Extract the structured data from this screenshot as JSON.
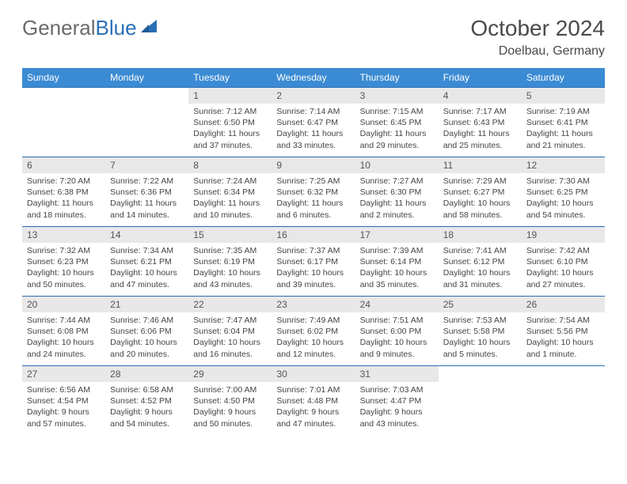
{
  "brand": {
    "part1": "General",
    "part2": "Blue"
  },
  "title": "October 2024",
  "location": "Doelbau, Germany",
  "colors": {
    "header_bg": "#3b8bd4",
    "rule": "#2a6fb5",
    "daynum_bg": "#e8e8e8",
    "text": "#444444",
    "title_text": "#4a4a4a"
  },
  "weekdays": [
    "Sunday",
    "Monday",
    "Tuesday",
    "Wednesday",
    "Thursday",
    "Friday",
    "Saturday"
  ],
  "weeks": [
    [
      null,
      null,
      {
        "n": "1",
        "sr": "7:12 AM",
        "ss": "6:50 PM",
        "dl": "11 hours and 37 minutes."
      },
      {
        "n": "2",
        "sr": "7:14 AM",
        "ss": "6:47 PM",
        "dl": "11 hours and 33 minutes."
      },
      {
        "n": "3",
        "sr": "7:15 AM",
        "ss": "6:45 PM",
        "dl": "11 hours and 29 minutes."
      },
      {
        "n": "4",
        "sr": "7:17 AM",
        "ss": "6:43 PM",
        "dl": "11 hours and 25 minutes."
      },
      {
        "n": "5",
        "sr": "7:19 AM",
        "ss": "6:41 PM",
        "dl": "11 hours and 21 minutes."
      }
    ],
    [
      {
        "n": "6",
        "sr": "7:20 AM",
        "ss": "6:38 PM",
        "dl": "11 hours and 18 minutes."
      },
      {
        "n": "7",
        "sr": "7:22 AM",
        "ss": "6:36 PM",
        "dl": "11 hours and 14 minutes."
      },
      {
        "n": "8",
        "sr": "7:24 AM",
        "ss": "6:34 PM",
        "dl": "11 hours and 10 minutes."
      },
      {
        "n": "9",
        "sr": "7:25 AM",
        "ss": "6:32 PM",
        "dl": "11 hours and 6 minutes."
      },
      {
        "n": "10",
        "sr": "7:27 AM",
        "ss": "6:30 PM",
        "dl": "11 hours and 2 minutes."
      },
      {
        "n": "11",
        "sr": "7:29 AM",
        "ss": "6:27 PM",
        "dl": "10 hours and 58 minutes."
      },
      {
        "n": "12",
        "sr": "7:30 AM",
        "ss": "6:25 PM",
        "dl": "10 hours and 54 minutes."
      }
    ],
    [
      {
        "n": "13",
        "sr": "7:32 AM",
        "ss": "6:23 PM",
        "dl": "10 hours and 50 minutes."
      },
      {
        "n": "14",
        "sr": "7:34 AM",
        "ss": "6:21 PM",
        "dl": "10 hours and 47 minutes."
      },
      {
        "n": "15",
        "sr": "7:35 AM",
        "ss": "6:19 PM",
        "dl": "10 hours and 43 minutes."
      },
      {
        "n": "16",
        "sr": "7:37 AM",
        "ss": "6:17 PM",
        "dl": "10 hours and 39 minutes."
      },
      {
        "n": "17",
        "sr": "7:39 AM",
        "ss": "6:14 PM",
        "dl": "10 hours and 35 minutes."
      },
      {
        "n": "18",
        "sr": "7:41 AM",
        "ss": "6:12 PM",
        "dl": "10 hours and 31 minutes."
      },
      {
        "n": "19",
        "sr": "7:42 AM",
        "ss": "6:10 PM",
        "dl": "10 hours and 27 minutes."
      }
    ],
    [
      {
        "n": "20",
        "sr": "7:44 AM",
        "ss": "6:08 PM",
        "dl": "10 hours and 24 minutes."
      },
      {
        "n": "21",
        "sr": "7:46 AM",
        "ss": "6:06 PM",
        "dl": "10 hours and 20 minutes."
      },
      {
        "n": "22",
        "sr": "7:47 AM",
        "ss": "6:04 PM",
        "dl": "10 hours and 16 minutes."
      },
      {
        "n": "23",
        "sr": "7:49 AM",
        "ss": "6:02 PM",
        "dl": "10 hours and 12 minutes."
      },
      {
        "n": "24",
        "sr": "7:51 AM",
        "ss": "6:00 PM",
        "dl": "10 hours and 9 minutes."
      },
      {
        "n": "25",
        "sr": "7:53 AM",
        "ss": "5:58 PM",
        "dl": "10 hours and 5 minutes."
      },
      {
        "n": "26",
        "sr": "7:54 AM",
        "ss": "5:56 PM",
        "dl": "10 hours and 1 minute."
      }
    ],
    [
      {
        "n": "27",
        "sr": "6:56 AM",
        "ss": "4:54 PM",
        "dl": "9 hours and 57 minutes."
      },
      {
        "n": "28",
        "sr": "6:58 AM",
        "ss": "4:52 PM",
        "dl": "9 hours and 54 minutes."
      },
      {
        "n": "29",
        "sr": "7:00 AM",
        "ss": "4:50 PM",
        "dl": "9 hours and 50 minutes."
      },
      {
        "n": "30",
        "sr": "7:01 AM",
        "ss": "4:48 PM",
        "dl": "9 hours and 47 minutes."
      },
      {
        "n": "31",
        "sr": "7:03 AM",
        "ss": "4:47 PM",
        "dl": "9 hours and 43 minutes."
      },
      null,
      null
    ]
  ],
  "labels": {
    "sunrise": "Sunrise: ",
    "sunset": "Sunset: ",
    "daylight": "Daylight: "
  }
}
